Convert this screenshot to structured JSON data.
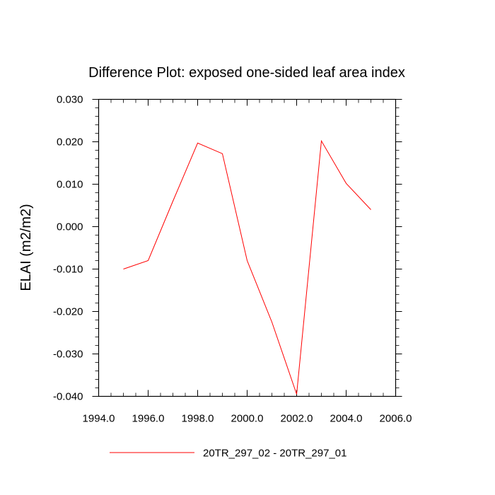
{
  "chart_data": {
    "type": "line",
    "title": "Difference Plot: exposed one-sided leaf area index",
    "xlabel": "",
    "ylabel": "ELAI  (m2/m2)",
    "xlim": [
      1994.0,
      2006.0
    ],
    "ylim": [
      -0.04,
      0.03
    ],
    "x_ticks": [
      "1994.0",
      "1996.0",
      "1998.0",
      "2000.0",
      "2002.0",
      "2004.0",
      "2006.0"
    ],
    "y_ticks": [
      "0.030",
      "0.020",
      "0.010",
      "0.000",
      "-0.010",
      "-0.020",
      "-0.030",
      "-0.040"
    ],
    "grid": false,
    "legend_position": "bottom",
    "series": [
      {
        "name": "20TR_297_02 - 20TR_297_01",
        "color": "#ff0000",
        "x": [
          1995,
          1996,
          1997,
          1998,
          1999,
          2000,
          2001,
          2002,
          2003,
          2004,
          2005
        ],
        "y": [
          -0.01,
          -0.008,
          0.006,
          0.0197,
          0.0172,
          -0.008,
          -0.0225,
          -0.0395,
          0.0202,
          0.0102,
          0.004
        ]
      }
    ]
  }
}
